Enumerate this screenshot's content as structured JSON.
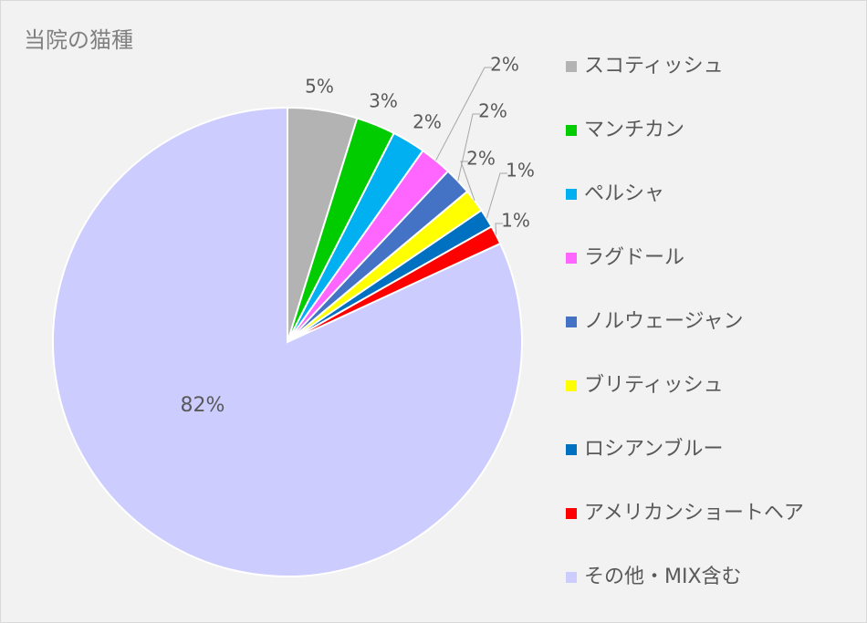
{
  "chart_data": {
    "type": "pie",
    "title": "当院の猫種",
    "categories": [
      "スコティッシュ",
      "マンチカン",
      "ペルシャ",
      "ラグドール",
      "ノルウェージャン",
      "ブリティッシュ",
      "ロシアンブルー",
      "アメリカンショートヘア",
      "その他・MIX含む"
    ],
    "values": [
      4.8,
      2.7,
      2.3,
      2.2,
      1.9,
      1.6,
      1.3,
      1.3,
      81.9
    ],
    "value_labels": [
      "5%",
      "3%",
      "2%",
      "2%",
      "2%",
      "2%",
      "1%",
      "1%",
      "82%"
    ],
    "colors": [
      "#b3b3b3",
      "#00cc00",
      "#00b0f0",
      "#ff66ff",
      "#4472c4",
      "#ffff00",
      "#0070c0",
      "#ff0000",
      "#ccccff"
    ],
    "legend": "right"
  }
}
